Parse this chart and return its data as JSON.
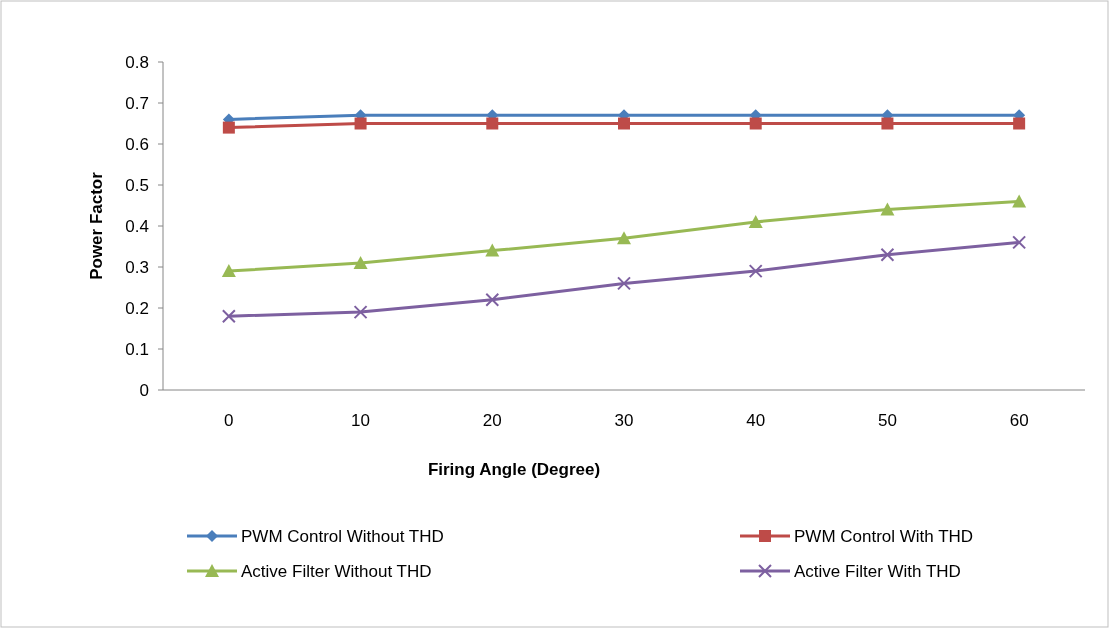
{
  "chart_data": {
    "type": "line",
    "xlabel": "Firing Angle (Degree)",
    "ylabel": "Power Factor",
    "categories": [
      "0",
      "10",
      "20",
      "30",
      "40",
      "50",
      "60"
    ],
    "series": [
      {
        "name": "PWM Control Without THD",
        "color": "#4a7ebb",
        "marker": "diamond",
        "values": [
          0.66,
          0.67,
          0.67,
          0.67,
          0.67,
          0.67,
          0.67
        ]
      },
      {
        "name": "PWM Control With THD",
        "color": "#be4b48",
        "marker": "square",
        "values": [
          0.64,
          0.65,
          0.65,
          0.65,
          0.65,
          0.65,
          0.65
        ]
      },
      {
        "name": "Active Filter Without THD",
        "color": "#98b954",
        "marker": "triangle",
        "values": [
          0.29,
          0.31,
          0.34,
          0.37,
          0.41,
          0.44,
          0.46
        ]
      },
      {
        "name": "Active Filter With THD",
        "color": "#7d60a0",
        "marker": "cross",
        "values": [
          0.18,
          0.19,
          0.22,
          0.26,
          0.29,
          0.33,
          0.36
        ]
      }
    ],
    "ylim": [
      0,
      0.8
    ],
    "yticks": [
      0,
      0.1,
      0.2,
      0.3,
      0.4,
      0.5,
      0.6,
      0.7,
      0.8
    ],
    "grid": false,
    "legend": "bottom"
  }
}
